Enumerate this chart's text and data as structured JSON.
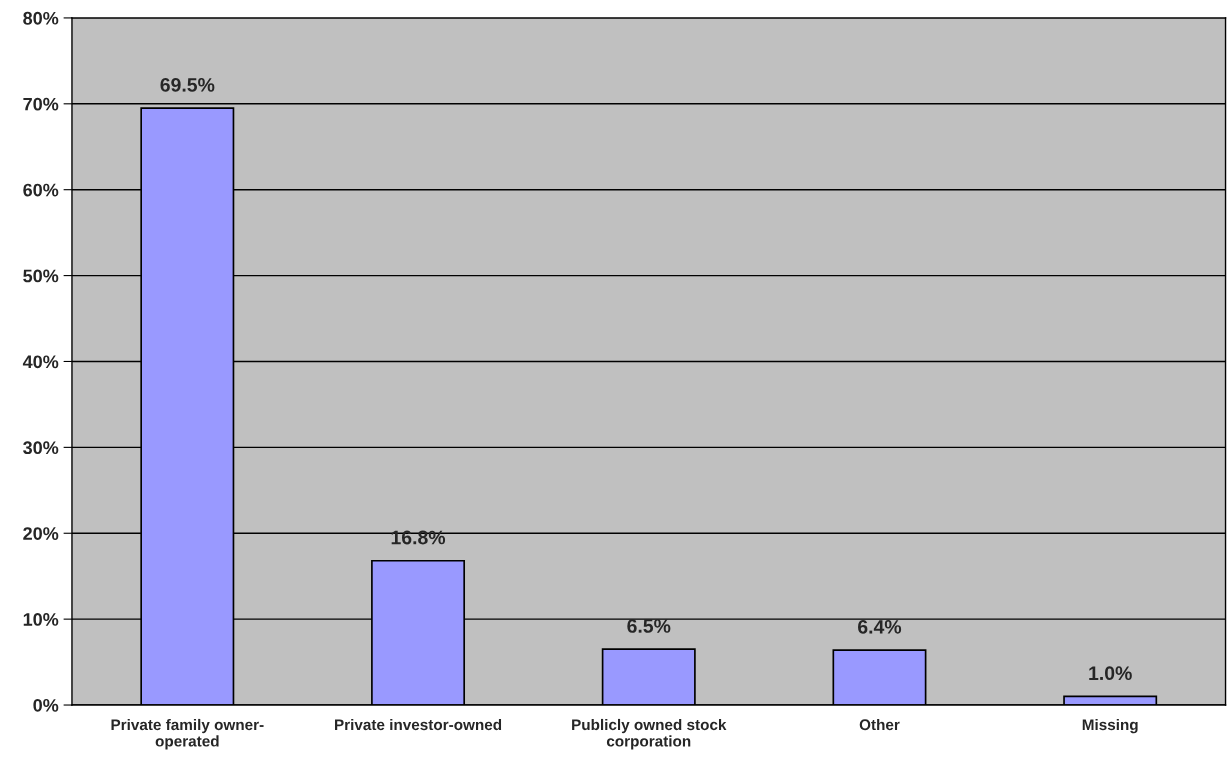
{
  "chart_data": {
    "type": "bar",
    "categories": [
      "Private family owner-\noperated",
      "Private investor-owned",
      "Publicly owned stock\ncorporation",
      "Other",
      "Missing"
    ],
    "values": [
      69.5,
      16.8,
      6.5,
      6.4,
      1.0
    ],
    "value_labels": [
      "69.5%",
      "16.8%",
      "6.5%",
      "6.4%",
      "1.0%"
    ],
    "color": "#9999ff",
    "ylim": [
      0,
      80
    ],
    "yticks": [
      {
        "value": 0,
        "label": "0%"
      },
      {
        "value": 10,
        "label": "10%"
      },
      {
        "value": 20,
        "label": "20%"
      },
      {
        "value": 30,
        "label": "30%"
      },
      {
        "value": 40,
        "label": "40%"
      },
      {
        "value": 50,
        "label": "50%"
      },
      {
        "value": 60,
        "label": "60%"
      },
      {
        "value": 70,
        "label": "70%"
      },
      {
        "value": 80,
        "label": "80%"
      }
    ],
    "grid": "y",
    "legend": false
  }
}
